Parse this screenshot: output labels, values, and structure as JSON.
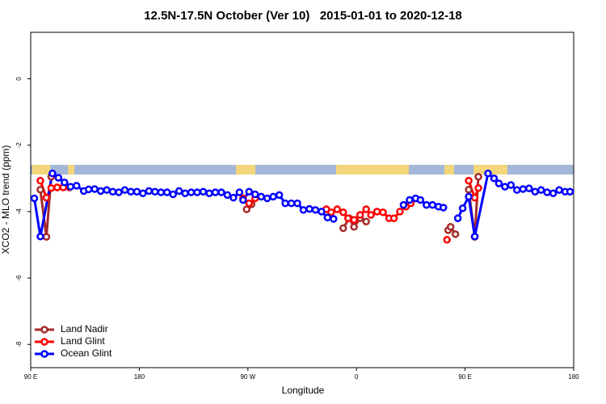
{
  "chart_data": {
    "type": "line",
    "title": "12.5N-17.5N October (Ver 10)   2015-01-01 to 2020-12-18",
    "x_label": "Longitude",
    "y_label": "XCO2 - MLO trend (ppm)",
    "xlim": [
      90,
      540
    ],
    "ylim": [
      -8.7,
      1.4
    ],
    "xticks": [
      {
        "value": 90,
        "label": "90 E"
      },
      180,
      {
        "value": 270,
        "label": "90 W"
      },
      {
        "value": 360,
        "label": "0"
      },
      {
        "value": 450,
        "label": "90 E"
      },
      {
        "value": 540,
        "label": "180"
      }
    ],
    "yticks": [
      0,
      -2,
      -4,
      -6,
      -8
    ],
    "legend": "bottom-left",
    "series": [
      {
        "name": "Land Nadir",
        "color": "#a52a2a",
        "x": [
          98,
          103,
          107,
          200,
          269,
          273,
          320,
          349,
          354,
          358,
          363,
          368,
          420,
          436,
          438,
          442,
          450,
          453,
          458,
          461
        ],
        "values": [
          -3.34,
          -4.76,
          -2.95,
          null,
          -3.93,
          -3.78,
          null,
          -4.5,
          -4.2,
          -4.46,
          -4.2,
          -4.3,
          null,
          -4.56,
          -4.46,
          -4.68,
          null,
          -3.34,
          -4.76,
          -2.95
        ]
      },
      {
        "name": "Land Glint",
        "color": "#ff0000",
        "x": [
          98,
          103,
          107,
          112,
          117,
          122,
          200,
          266,
          271,
          276,
          320,
          335,
          339,
          344,
          349,
          353,
          358,
          363,
          368,
          372,
          377,
          382,
          387,
          391,
          396,
          401,
          405,
          430,
          435,
          450,
          453,
          458,
          461
        ],
        "values": [
          -3.07,
          -3.58,
          -3.29,
          -3.27,
          -3.27,
          -3.27,
          null,
          -3.6,
          -3.75,
          -3.6,
          null,
          -3.93,
          -4.02,
          -3.93,
          -4.02,
          -4.2,
          -4.25,
          -4.1,
          -3.93,
          -4.1,
          -4.0,
          -4.02,
          -4.2,
          -4.2,
          -4.0,
          -3.85,
          -3.75,
          null,
          -4.85,
          null,
          -3.07,
          -3.58,
          -3.29
        ]
      },
      {
        "name": "Ocean Glint",
        "color": "#0000ff",
        "x": [
          93,
          98,
          108,
          113,
          118,
          123,
          128,
          134,
          138,
          143,
          148,
          153,
          158,
          163,
          168,
          173,
          178,
          183,
          188,
          193,
          198,
          203,
          208,
          213,
          218,
          223,
          228,
          233,
          238,
          243,
          248,
          253,
          258,
          263,
          266,
          271,
          276,
          281,
          286,
          291,
          296,
          301,
          306,
          311,
          316,
          321,
          326,
          331,
          336,
          341,
          370,
          399,
          404,
          409,
          413,
          418,
          423,
          428,
          432,
          438,
          444,
          448,
          453,
          458,
          469,
          474,
          478,
          483,
          488,
          493,
          498,
          503,
          508,
          513,
          518,
          523,
          528,
          533,
          537
        ],
        "values": [
          -3.6,
          -4.75,
          -2.85,
          -2.98,
          -3.12,
          -3.25,
          -3.22,
          -3.38,
          -3.33,
          -3.32,
          -3.38,
          -3.35,
          -3.4,
          -3.42,
          -3.35,
          -3.4,
          -3.4,
          -3.45,
          -3.38,
          -3.4,
          -3.42,
          -3.42,
          -3.48,
          -3.38,
          -3.45,
          -3.42,
          -3.42,
          -3.4,
          -3.45,
          -3.42,
          -3.42,
          -3.5,
          -3.58,
          -3.42,
          -3.65,
          -3.4,
          -3.48,
          -3.55,
          -3.6,
          -3.55,
          -3.5,
          -3.75,
          -3.75,
          -3.75,
          -3.95,
          -3.92,
          -3.95,
          -4.0,
          -4.18,
          -4.22,
          null,
          -3.8,
          -3.65,
          -3.6,
          -3.65,
          -3.8,
          -3.8,
          -3.85,
          -3.88,
          null,
          -4.2,
          -3.9,
          -3.55,
          -4.75,
          -2.85,
          -3.0,
          -3.15,
          -3.25,
          -3.2,
          -3.35,
          -3.32,
          -3.3,
          -3.4,
          -3.35,
          -3.42,
          -3.45,
          -3.35,
          -3.4,
          -3.4
        ]
      }
    ]
  }
}
